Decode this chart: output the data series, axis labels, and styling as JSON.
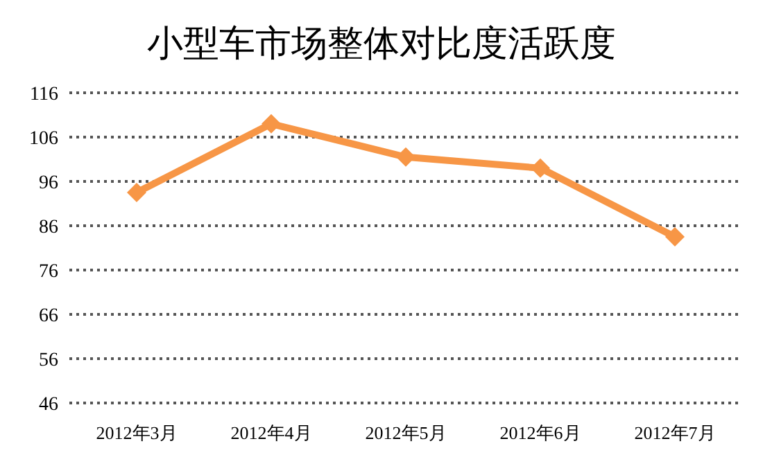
{
  "chart_data": {
    "type": "line",
    "title": "小型车市场整体对比度活跃度",
    "categories": [
      "2012年3月",
      "2012年4月",
      "2012年5月",
      "2012年6月",
      "2012年7月"
    ],
    "series": [
      {
        "color": "#f79646",
        "values": [
          93.5,
          109,
          101.5,
          99,
          83.5
        ]
      }
    ],
    "ylim": [
      46,
      116
    ],
    "yticks": [
      46,
      56,
      66,
      76,
      86,
      96,
      106,
      116
    ],
    "grid": "y",
    "marker": "diamond",
    "line_style": "solid"
  }
}
